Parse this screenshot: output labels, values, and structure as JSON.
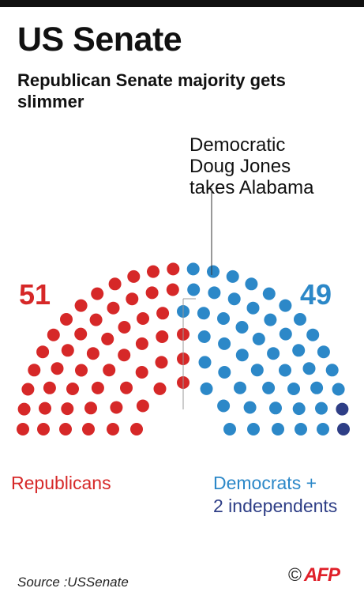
{
  "header": {
    "title": "US Senate",
    "subtitle": "Republican Senate majority gets slimmer"
  },
  "annotation": {
    "lines": [
      "Democratic",
      "Doug Jones",
      "takes Alabama"
    ]
  },
  "chart_data": {
    "type": "parliament",
    "title": "US Senate",
    "subtitle": "Republican Senate majority gets slimmer",
    "total_seats": 100,
    "series": [
      {
        "name": "Republicans",
        "value": 51,
        "color": "#d62828"
      },
      {
        "name": "Democrats +",
        "value": 49,
        "color": "#2c88c8"
      },
      {
        "name": "2 independents",
        "value": 2,
        "color": "#2e3e86"
      }
    ],
    "counts": {
      "left": "51",
      "right": "49"
    },
    "annotation": "Democratic Doug Jones takes Alabama"
  },
  "legend": {
    "republicans": "Republicans",
    "democrats": "Democrats +",
    "independents": "2 independents"
  },
  "footer": {
    "source": "Source :USSenate",
    "copyright": "©",
    "agency": "AFP"
  }
}
